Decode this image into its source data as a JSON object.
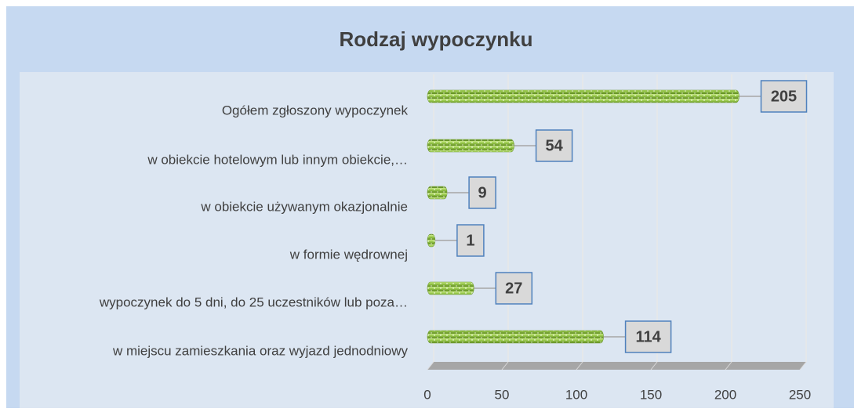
{
  "chart_data": {
    "type": "bar",
    "orientation": "horizontal",
    "title": "Rodzaj wypoczynku",
    "categories": [
      "Ogółem zgłoszony wypoczynek",
      "w obiekcie hotelowym lub innym obiekcie,…",
      "w obiekcie używanym okazjonalnie",
      "w formie wędrownej",
      "wypoczynek do 5 dni, do 25 uczestników lub poza…",
      "w miejscu zamieszkania oraz wyjazd jednodniowy"
    ],
    "values": [
      205,
      54,
      9,
      1,
      27,
      114
    ],
    "color": "#92c050",
    "xlim": [
      0,
      250
    ],
    "xticks": [
      0,
      50,
      100,
      150,
      200,
      250
    ],
    "grid": true
  }
}
